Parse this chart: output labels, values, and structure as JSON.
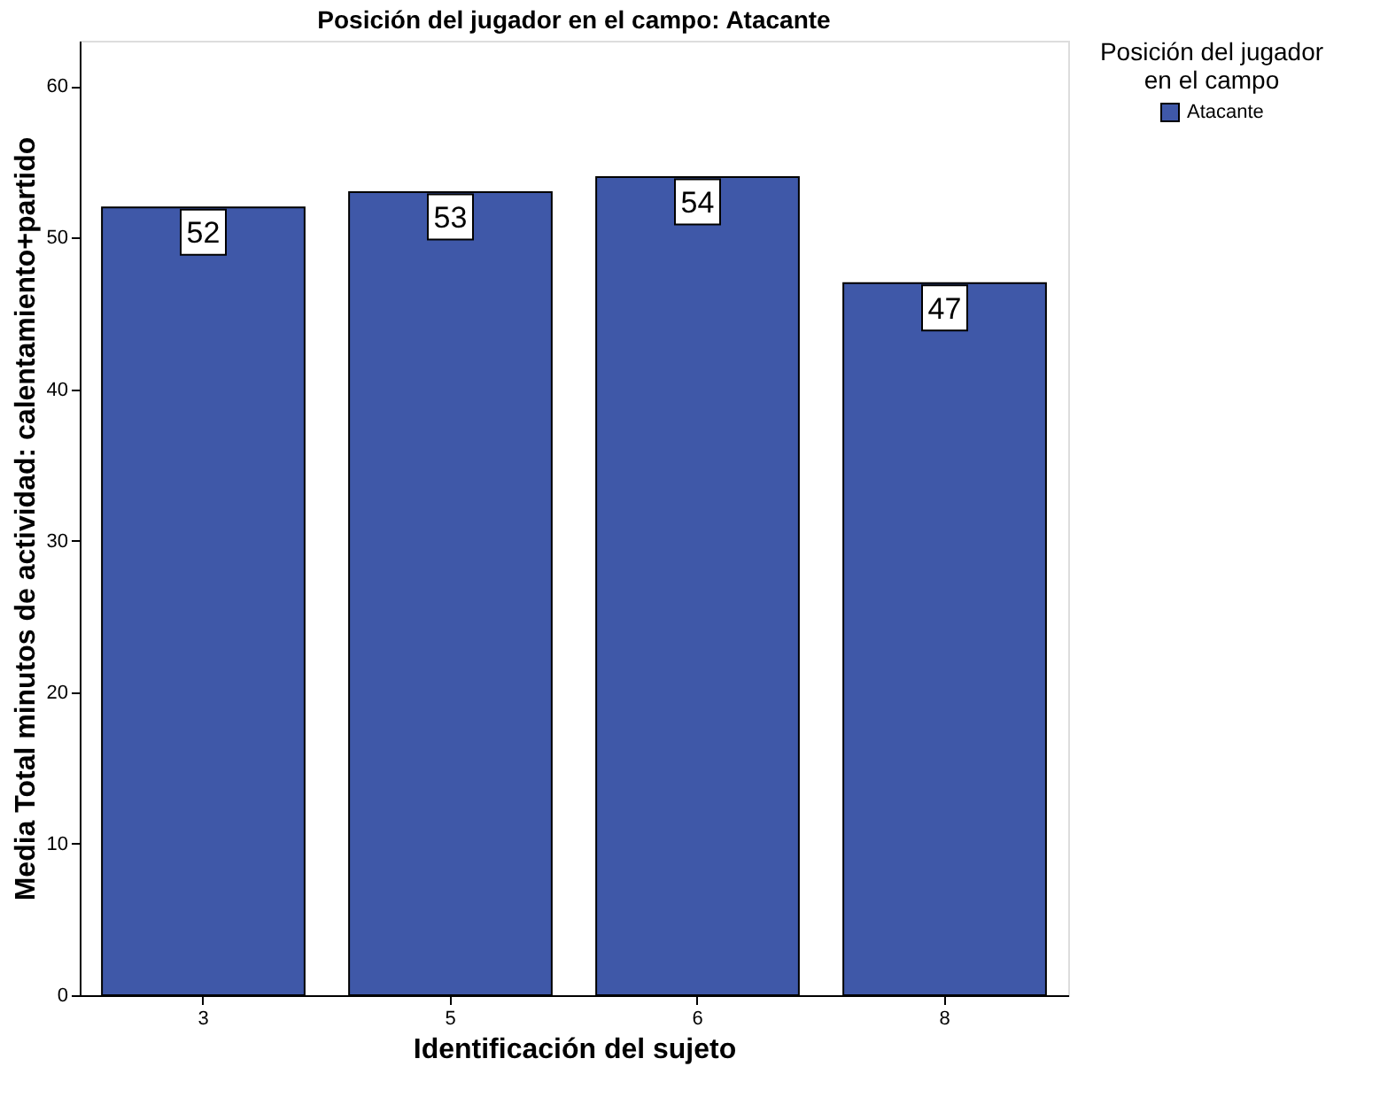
{
  "chart_data": {
    "type": "bar",
    "title": "Posición del jugador en el campo: Atacante",
    "xlabel": "Identificación del sujeto",
    "ylabel": "Media Total minutos de actividad: calentamiento+partido",
    "legend_title": "Posición del jugador en el campo",
    "categories": [
      "3",
      "5",
      "6",
      "8"
    ],
    "series": [
      {
        "name": "Atacante",
        "color": "#3f58a8",
        "values": [
          52,
          53,
          54,
          47
        ]
      }
    ],
    "ylim": [
      0,
      63
    ],
    "yticks": [
      0,
      10,
      20,
      30,
      40,
      50,
      60
    ],
    "grid": false,
    "legend": "top right",
    "data_labels": true
  }
}
